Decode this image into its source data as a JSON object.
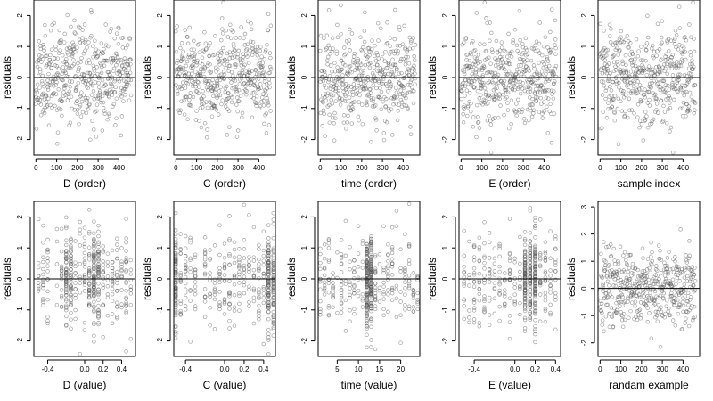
{
  "figure": {
    "background_color": "#ffffff",
    "point_color": "#555555",
    "line_color": "#000000"
  },
  "chart_data": [
    {
      "type": "scatter",
      "xlabel": "D (order)",
      "ylabel": "residuals",
      "xlim": [
        -10,
        480
      ],
      "ylim": [
        -2.5,
        2.5
      ],
      "xticks": [
        "0",
        "100",
        "200",
        "300",
        "400"
      ],
      "yticks": [
        "-2",
        "-1",
        "0",
        "1",
        "2"
      ],
      "hline": 0,
      "grid": false,
      "x_kind": "index",
      "n": 460,
      "seed": 11
    },
    {
      "type": "scatter",
      "xlabel": "C (order)",
      "ylabel": "residuals",
      "xlim": [
        -10,
        480
      ],
      "ylim": [
        -2.5,
        2.5
      ],
      "xticks": [
        "0",
        "100",
        "200",
        "300",
        "400"
      ],
      "yticks": [
        "-2",
        "-1",
        "0",
        "1",
        "2"
      ],
      "hline": 0,
      "grid": false,
      "x_kind": "index",
      "n": 460,
      "seed": 23
    },
    {
      "type": "scatter",
      "xlabel": "time (order)",
      "ylabel": "residuals",
      "xlim": [
        -10,
        480
      ],
      "ylim": [
        -2.5,
        2.5
      ],
      "xticks": [
        "0",
        "100",
        "200",
        "300",
        "400"
      ],
      "yticks": [
        "-2",
        "-1",
        "0",
        "1",
        "2"
      ],
      "hline": 0,
      "grid": false,
      "x_kind": "index",
      "n": 460,
      "seed": 37
    },
    {
      "type": "scatter",
      "xlabel": "E (order)",
      "ylabel": "residuals",
      "xlim": [
        -10,
        480
      ],
      "ylim": [
        -2.5,
        2.5
      ],
      "xticks": [
        "0",
        "100",
        "200",
        "300",
        "400"
      ],
      "yticks": [
        "-2",
        "-1",
        "0",
        "1",
        "2"
      ],
      "hline": 0,
      "grid": false,
      "x_kind": "index",
      "n": 460,
      "seed": 41
    },
    {
      "type": "scatter",
      "xlabel": "sample index",
      "ylabel": "residuals",
      "xlim": [
        -10,
        480
      ],
      "ylim": [
        -2.5,
        2.5
      ],
      "xticks": [
        "0",
        "100",
        "200",
        "300",
        "400"
      ],
      "yticks": [
        "-2",
        "-1",
        "0",
        "1",
        "2"
      ],
      "hline": 0,
      "grid": false,
      "x_kind": "index",
      "n": 460,
      "seed": 53
    },
    {
      "type": "scatter",
      "xlabel": "D (value)",
      "ylabel": "residuals",
      "xlim": [
        -0.55,
        0.55
      ],
      "ylim": [
        -2.5,
        2.5
      ],
      "xticks": [
        "-0.4",
        "0.0",
        "0.2",
        "0.4"
      ],
      "yticks": [
        "-2",
        "-1",
        "0",
        "1",
        "2"
      ],
      "hline": 0,
      "grid": false,
      "x_kind": "levels",
      "levels": [
        -0.5,
        -0.45,
        -0.4,
        -0.3,
        -0.25,
        -0.2,
        -0.15,
        -0.1,
        -0.05,
        0.0,
        0.05,
        0.1,
        0.15,
        0.2,
        0.25,
        0.3,
        0.35,
        0.4,
        0.45,
        0.5
      ],
      "dense_levels": [
        -0.2,
        -0.15,
        0.05,
        0.1,
        0.15
      ],
      "n": 460,
      "seed": 61
    },
    {
      "type": "scatter",
      "xlabel": "C (value)",
      "ylabel": "residuals",
      "xlim": [
        -0.52,
        0.52
      ],
      "ylim": [
        -2.5,
        2.5
      ],
      "xticks": [
        "-0.4",
        "0.0",
        "0.2",
        "0.4"
      ],
      "yticks": [
        "-2",
        "-1",
        "0",
        "1",
        "2"
      ],
      "hline": 0,
      "grid": false,
      "x_kind": "levels",
      "levels": [
        -0.5,
        -0.45,
        -0.4,
        -0.35,
        -0.3,
        -0.2,
        -0.15,
        -0.1,
        -0.05,
        0.0,
        0.05,
        0.1,
        0.15,
        0.2,
        0.25,
        0.3,
        0.35,
        0.4,
        0.45,
        0.5
      ],
      "dense_levels": [
        -0.5,
        0.45,
        0.5
      ],
      "n": 460,
      "seed": 67
    },
    {
      "type": "scatter",
      "xlabel": "time (value)",
      "ylabel": "residuals",
      "xlim": [
        0.5,
        24.5
      ],
      "ylim": [
        -2.5,
        2.5
      ],
      "xticks": [
        "5",
        "10",
        "15",
        "20"
      ],
      "yticks": [
        "-2",
        "-1",
        "0",
        "1",
        "2"
      ],
      "hline": 0,
      "grid": false,
      "x_kind": "levels",
      "levels": [
        1,
        2,
        3,
        4,
        5,
        6,
        7,
        8,
        9,
        10,
        11,
        12,
        13,
        14,
        15,
        16,
        17,
        18,
        19,
        20,
        21,
        22,
        23,
        24
      ],
      "dense_levels": [
        12,
        13
      ],
      "n": 460,
      "seed": 71
    },
    {
      "type": "scatter",
      "xlabel": "E (value)",
      "ylabel": "residuals",
      "xlim": [
        -0.55,
        0.45
      ],
      "ylim": [
        -2.5,
        2.5
      ],
      "xticks": [
        "-0.4",
        "0.0",
        "0.2",
        "0.4"
      ],
      "yticks": [
        "-2",
        "-1",
        "0",
        "1",
        "2"
      ],
      "hline": 0,
      "grid": false,
      "x_kind": "levels",
      "levels": [
        -0.5,
        -0.45,
        -0.4,
        -0.35,
        -0.3,
        -0.25,
        -0.2,
        -0.15,
        -0.1,
        -0.05,
        0.0,
        0.05,
        0.1,
        0.15,
        0.2,
        0.25,
        0.3,
        0.35,
        0.4
      ],
      "dense_levels": [
        0.1,
        0.15,
        0.2
      ],
      "n": 460,
      "seed": 79
    },
    {
      "type": "scatter",
      "xlabel": "randam example",
      "ylabel": "residuals",
      "xlim": [
        -10,
        480
      ],
      "ylim": [
        -2.5,
        3.2
      ],
      "xticks": [
        "0",
        "100",
        "200",
        "300",
        "400"
      ],
      "yticks": [
        "-2",
        "-1",
        "0",
        "1",
        "2",
        "3"
      ],
      "hline": 0,
      "grid": false,
      "x_kind": "index",
      "n": 460,
      "seed": 83
    }
  ]
}
